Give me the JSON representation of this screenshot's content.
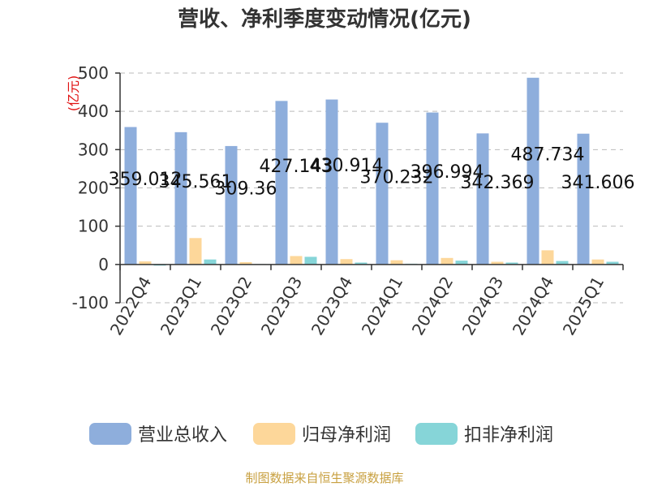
{
  "chart_data": {
    "type": "bar",
    "title": "营收、净利季度变动情况(亿元)",
    "unit_label": "(亿元)",
    "categories": [
      "2022Q4",
      "2023Q1",
      "2023Q2",
      "2023Q3",
      "2023Q4",
      "2024Q1",
      "2024Q2",
      "2024Q3",
      "2024Q4",
      "2025Q1"
    ],
    "series": [
      {
        "name": "营业总收入",
        "color": "#8eaedc",
        "values": [
          359.012,
          345.561,
          309.36,
          427.143,
          430.914,
          370.232,
          396.994,
          342.369,
          487.734,
          341.606
        ]
      },
      {
        "name": "归母净利润",
        "color": "#fdd79a",
        "values": [
          8,
          69,
          6,
          22,
          14,
          11,
          17,
          7,
          37,
          13
        ]
      },
      {
        "name": "扣非净利润",
        "color": "#86d5d8",
        "values": [
          -3,
          13,
          1,
          20,
          5,
          2,
          10,
          5,
          9,
          7
        ]
      }
    ],
    "data_labels": [
      "359.012",
      "345.561",
      "309.36",
      "427.143",
      "430.914",
      "370.232",
      "396.994",
      "342.369",
      "487.734",
      "341.606"
    ],
    "ylim": [
      -100,
      500
    ],
    "yticks": [
      "-100",
      "0",
      "100",
      "200",
      "300",
      "400",
      "500"
    ],
    "grid": true,
    "legend_position": "bottom"
  },
  "footer": {
    "source": "制图数据来自恒生聚源数据库"
  }
}
